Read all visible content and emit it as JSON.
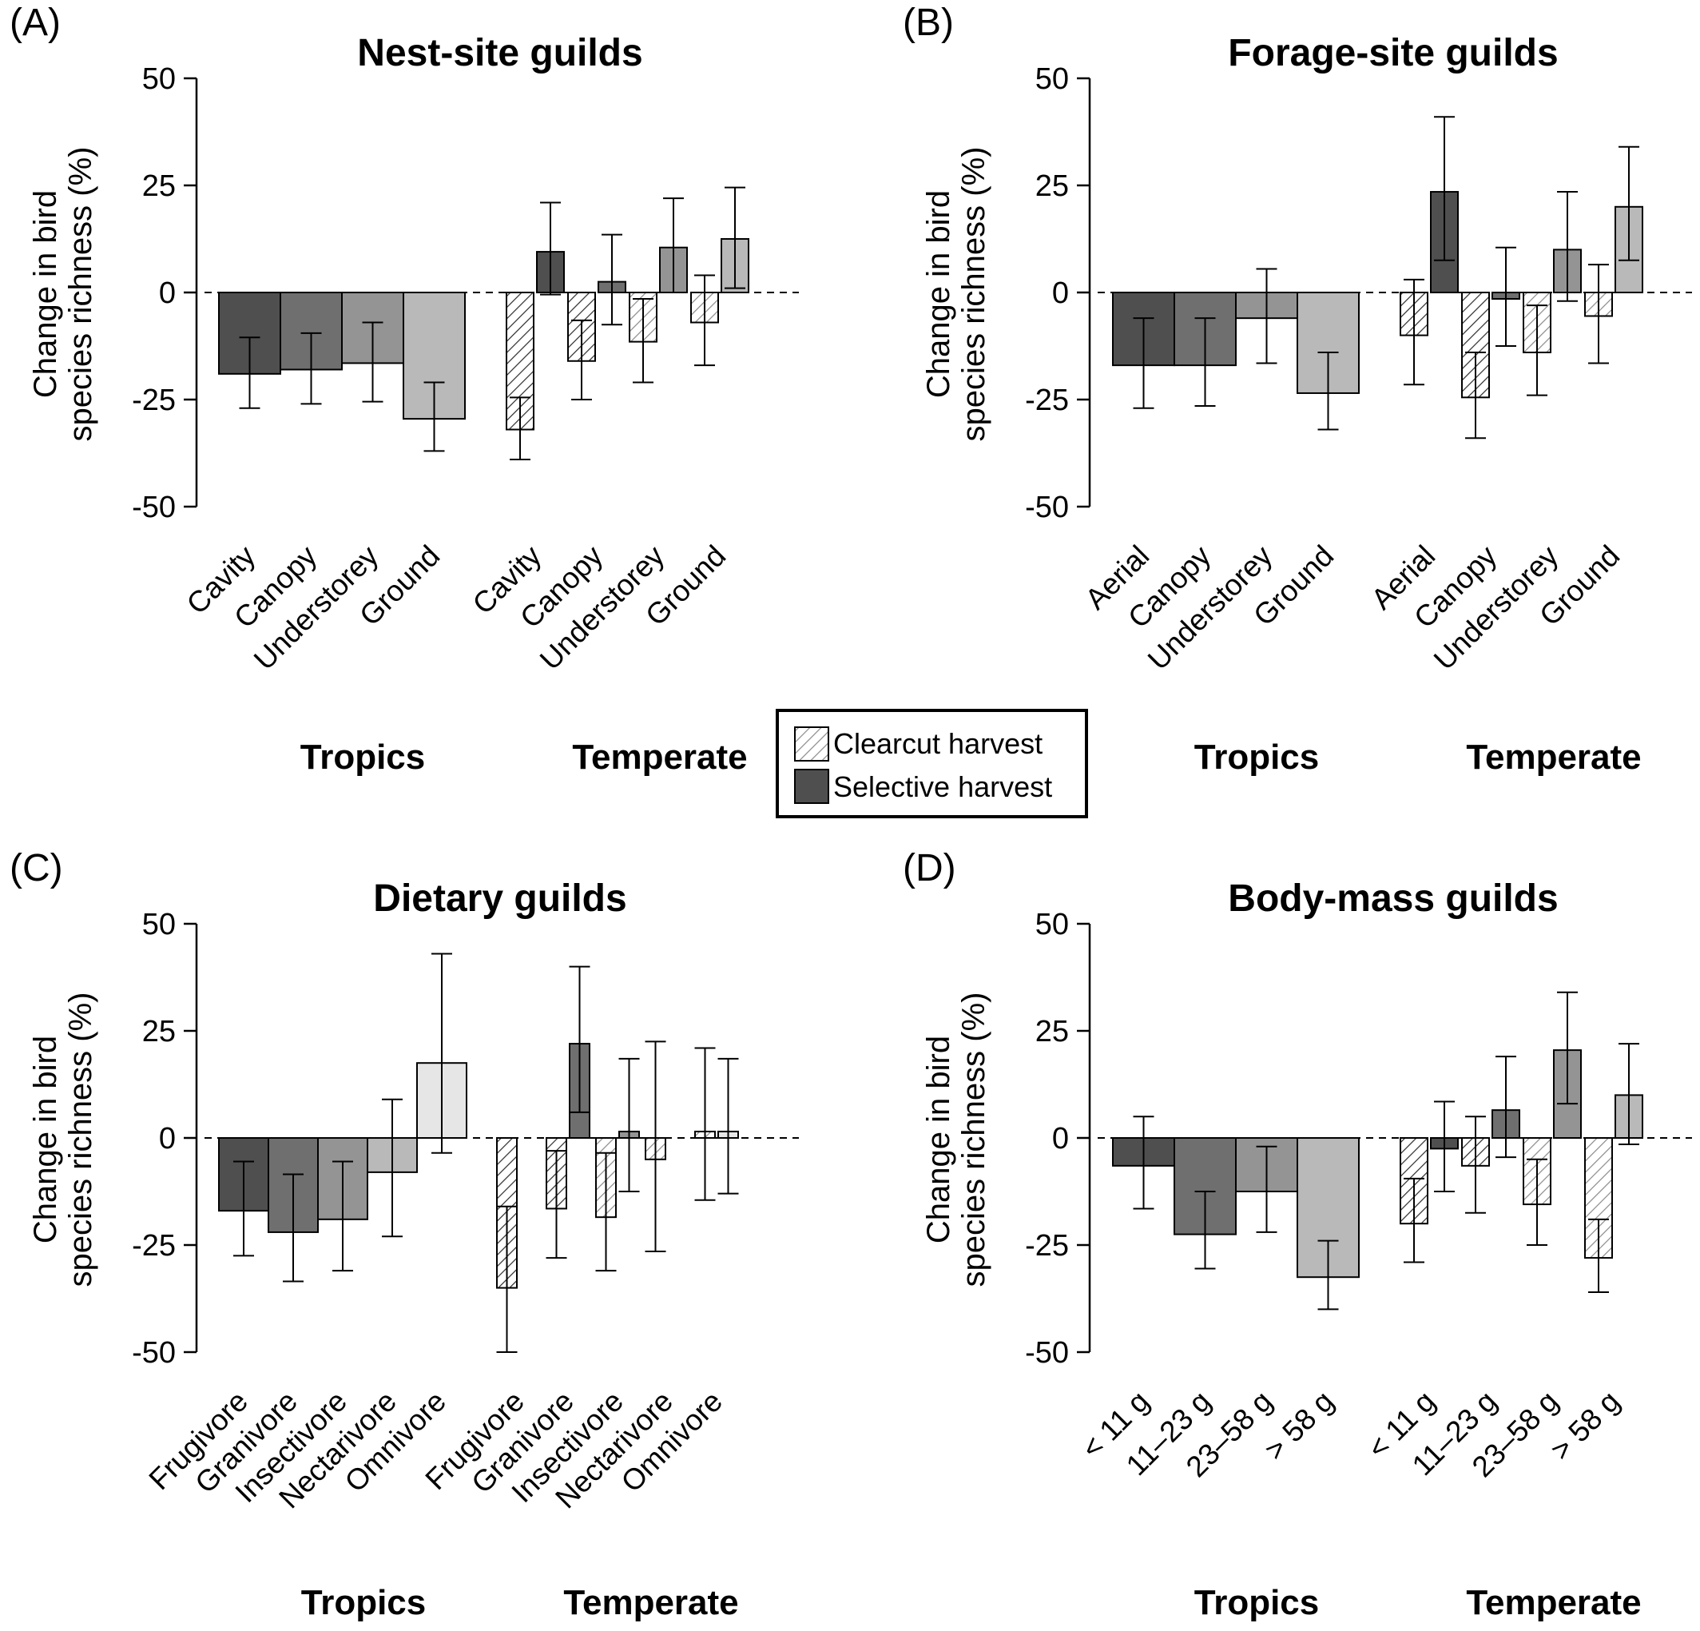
{
  "legend": {
    "clearcut": "Clearcut harvest",
    "selective": "Selective harvest"
  },
  "colors": {
    "shade_1": "#4f4f4f",
    "shade_2": "#6f6f6f",
    "shade_3": "#949494",
    "shade_4": "#b9b9b9",
    "shade_5": "#e6e6e6",
    "hatch_dark": "#2b2b2b",
    "hatch_light": "#8a8a8a"
  },
  "chart_data": [
    {
      "type": "bar",
      "label": "(A)",
      "title": "Nest-site guilds",
      "ylabel": "Change in bird species richness (%)",
      "ylabel_lines": [
        "Change in bird",
        "species richness (%)"
      ],
      "ylim": [
        -50,
        50
      ],
      "yticks": [
        "50",
        "25",
        "0",
        "-25",
        "-50"
      ],
      "groups": [
        {
          "name": "Tropics",
          "categories": [
            "Cavity",
            "Canopy",
            "Understorey",
            "Ground"
          ],
          "bars": [
            {
              "type": "selective",
              "value": -19,
              "lo": -27,
              "hi": -10.5,
              "shade": 1
            },
            {
              "type": "selective",
              "value": -18,
              "lo": -26,
              "hi": -9.5,
              "shade": 2
            },
            {
              "type": "selective",
              "value": -16.5,
              "lo": -25.5,
              "hi": -7,
              "shade": 3
            },
            {
              "type": "selective",
              "value": -29.5,
              "lo": -37,
              "hi": -21,
              "shade": 4
            }
          ]
        },
        {
          "name": "Temperate",
          "categories": [
            "Cavity",
            "Canopy",
            "Understorey",
            "Ground"
          ],
          "pairs": [
            {
              "clearcut": {
                "value": -32,
                "lo": -39,
                "hi": -24.5,
                "shade": 1
              },
              "selective": {
                "value": 9.5,
                "lo": -0.5,
                "hi": 21,
                "shade": 1
              }
            },
            {
              "clearcut": {
                "value": -16,
                "lo": -25,
                "hi": -6.5,
                "shade": 2
              },
              "selective": {
                "value": 2.5,
                "lo": -7.5,
                "hi": 13.5,
                "shade": 2
              }
            },
            {
              "clearcut": {
                "value": -11.5,
                "lo": -21,
                "hi": -1.5,
                "shade": 3
              },
              "selective": {
                "value": 10.5,
                "lo": 0,
                "hi": 22,
                "shade": 3
              }
            },
            {
              "clearcut": {
                "value": -7,
                "lo": -17,
                "hi": 4,
                "shade": 4
              },
              "selective": {
                "value": 12.5,
                "lo": 1,
                "hi": 24.5,
                "shade": 4
              }
            }
          ]
        }
      ]
    },
    {
      "type": "bar",
      "label": "(B)",
      "title": "Forage-site guilds",
      "ylabel": "Change in bird species richness (%)",
      "ylabel_lines": [
        "Change in bird",
        "species richness (%)"
      ],
      "ylim": [
        -50,
        50
      ],
      "yticks": [
        "50",
        "25",
        "0",
        "-25",
        "-50"
      ],
      "groups": [
        {
          "name": "Tropics",
          "categories": [
            "Aerial",
            "Canopy",
            "Understorey",
            "Ground"
          ],
          "bars": [
            {
              "type": "selective",
              "value": -17,
              "lo": -27,
              "hi": -6,
              "shade": 1
            },
            {
              "type": "selective",
              "value": -17,
              "lo": -26.5,
              "hi": -6,
              "shade": 2
            },
            {
              "type": "selective",
              "value": -6,
              "lo": -16.5,
              "hi": 5.5,
              "shade": 3
            },
            {
              "type": "selective",
              "value": -23.5,
              "lo": -32,
              "hi": -14,
              "shade": 4
            }
          ]
        },
        {
          "name": "Temperate",
          "categories": [
            "Aerial",
            "Canopy",
            "Understorey",
            "Ground"
          ],
          "pairs": [
            {
              "clearcut": {
                "value": -10,
                "lo": -21.5,
                "hi": 3,
                "shade": 1
              },
              "selective": {
                "value": 23.5,
                "lo": 7.5,
                "hi": 41,
                "shade": 1
              }
            },
            {
              "clearcut": {
                "value": -24.5,
                "lo": -34,
                "hi": -14,
                "shade": 2
              },
              "selective": {
                "value": -1.5,
                "lo": -12.5,
                "hi": 10.5,
                "shade": 2
              }
            },
            {
              "clearcut": {
                "value": -14,
                "lo": -24,
                "hi": -3,
                "shade": 3
              },
              "selective": {
                "value": 10,
                "lo": -2,
                "hi": 23.5,
                "shade": 3
              }
            },
            {
              "clearcut": {
                "value": -5.5,
                "lo": -16.5,
                "hi": 6.5,
                "shade": 4
              },
              "selective": {
                "value": 20,
                "lo": 7.5,
                "hi": 34,
                "shade": 4
              }
            }
          ]
        }
      ]
    },
    {
      "type": "bar",
      "label": "(C)",
      "title": "Dietary guilds",
      "ylabel": "Change in bird species richness (%)",
      "ylabel_lines": [
        "Change in bird",
        "species richness (%)"
      ],
      "ylim": [
        -50,
        50
      ],
      "yticks": [
        "50",
        "25",
        "0",
        "-25",
        "-50"
      ],
      "groups": [
        {
          "name": "Tropics",
          "categories": [
            "Frugivore",
            "Granivore",
            "Insectivore",
            "Nectarivore",
            "Omnivore"
          ],
          "bars": [
            {
              "type": "selective",
              "value": -17,
              "lo": -27.5,
              "hi": -5.5,
              "shade": 1
            },
            {
              "type": "selective",
              "value": -22,
              "lo": -33.5,
              "hi": -8.5,
              "shade": 2
            },
            {
              "type": "selective",
              "value": -19,
              "lo": -31,
              "hi": -5.5,
              "shade": 3
            },
            {
              "type": "selective",
              "value": -8,
              "lo": -23,
              "hi": 9,
              "shade": 4
            },
            {
              "type": "selective",
              "value": 17.5,
              "lo": -3.5,
              "hi": 43,
              "shade": 5
            }
          ]
        },
        {
          "name": "Temperate",
          "categories": [
            "Frugivore",
            "Granivore",
            "Insectivore",
            "Nectarivore",
            "Omnivore"
          ],
          "pairs": [
            {
              "clearcut": {
                "value": -35,
                "lo": -50,
                "hi": -16,
                "shade": 1
              },
              "selective": null
            },
            {
              "clearcut": {
                "value": -16.5,
                "lo": -28,
                "hi": -3,
                "shade": 2
              },
              "selective": {
                "value": 22,
                "lo": 6,
                "hi": 40,
                "shade": 2
              }
            },
            {
              "clearcut": {
                "value": -18.5,
                "lo": -31,
                "hi": -3.5,
                "shade": 3
              },
              "selective": {
                "value": 1.5,
                "lo": -12.5,
                "hi": 18.5,
                "shade": 3
              }
            },
            {
              "clearcut": {
                "value": -5,
                "lo": -26.5,
                "hi": 22.5,
                "shade": 4
              },
              "selective": null
            },
            {
              "clearcut": {
                "value": 1.5,
                "lo": -14.5,
                "hi": 21,
                "shade": 5
              },
              "selective": {
                "value": 1.5,
                "lo": -13,
                "hi": 18.5,
                "shade": 5
              }
            }
          ]
        }
      ]
    },
    {
      "type": "bar",
      "label": "(D)",
      "title": "Body-mass guilds",
      "ylabel": "Change in bird species richness (%)",
      "ylabel_lines": [
        "Change in bird",
        "species richness (%)"
      ],
      "ylim": [
        -50,
        50
      ],
      "yticks": [
        "50",
        "25",
        "0",
        "-25",
        "-50"
      ],
      "groups": [
        {
          "name": "Tropics",
          "categories": [
            "< 11 g",
            "11–23 g",
            "23–58 g",
            "> 58 g"
          ],
          "bars": [
            {
              "type": "selective",
              "value": -6.5,
              "lo": -16.5,
              "hi": 5,
              "shade": 1
            },
            {
              "type": "selective",
              "value": -22.5,
              "lo": -30.5,
              "hi": -12.5,
              "shade": 2
            },
            {
              "type": "selective",
              "value": -12.5,
              "lo": -22,
              "hi": -2,
              "shade": 3
            },
            {
              "type": "selective",
              "value": -32.5,
              "lo": -40,
              "hi": -24,
              "shade": 4
            }
          ]
        },
        {
          "name": "Temperate",
          "categories": [
            "< 11 g",
            "11–23 g",
            "23–58 g",
            "> 58 g"
          ],
          "pairs": [
            {
              "clearcut": {
                "value": -20,
                "lo": -29,
                "hi": -9.5,
                "shade": 1
              },
              "selective": {
                "value": -2.5,
                "lo": -12.5,
                "hi": 8.5,
                "shade": 1
              }
            },
            {
              "clearcut": {
                "value": -6.5,
                "lo": -17.5,
                "hi": 5,
                "shade": 2
              },
              "selective": {
                "value": 6.5,
                "lo": -4.5,
                "hi": 19,
                "shade": 2
              }
            },
            {
              "clearcut": {
                "value": -15.5,
                "lo": -25,
                "hi": -5,
                "shade": 3
              },
              "selective": {
                "value": 20.5,
                "lo": 8,
                "hi": 34,
                "shade": 3
              }
            },
            {
              "clearcut": {
                "value": -28,
                "lo": -36,
                "hi": -19,
                "shade": 4
              },
              "selective": {
                "value": 10,
                "lo": -1.5,
                "hi": 22,
                "shade": 4
              }
            }
          ]
        }
      ]
    }
  ]
}
